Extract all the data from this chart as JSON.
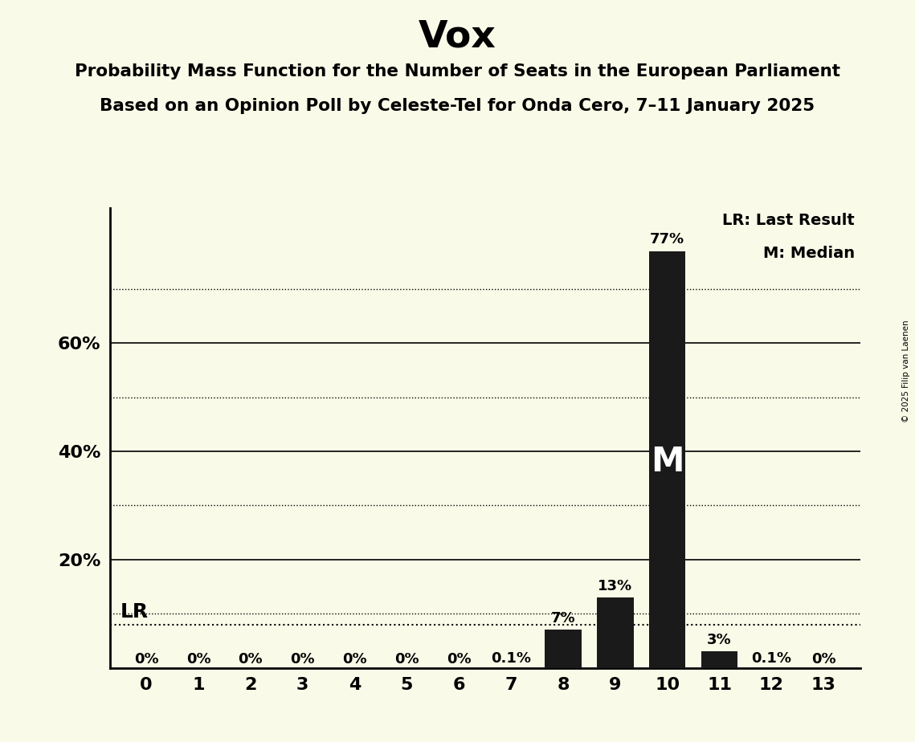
{
  "title": "Vox",
  "subtitle_line1": "Probability Mass Function for the Number of Seats in the European Parliament",
  "subtitle_line2": "Based on an Opinion Poll by Celeste-Tel for Onda Cero, 7–11 January 2025",
  "copyright": "© 2025 Filip van Laenen",
  "categories": [
    0,
    1,
    2,
    3,
    4,
    5,
    6,
    7,
    8,
    9,
    10,
    11,
    12,
    13
  ],
  "values": [
    0.0,
    0.0,
    0.0,
    0.0,
    0.0,
    0.0,
    0.0,
    0.1,
    7.0,
    13.0,
    77.0,
    3.0,
    0.1,
    0.0
  ],
  "bar_labels": [
    "0%",
    "0%",
    "0%",
    "0%",
    "0%",
    "0%",
    "0%",
    "0.1%",
    "7%",
    "13%",
    "77%",
    "3%",
    "0.1%",
    "0%"
  ],
  "bar_color": "#1a1a1a",
  "background_color": "#fafae8",
  "dotted_gridlines": [
    10,
    30,
    50,
    70
  ],
  "solid_gridlines": [
    20,
    40,
    60
  ],
  "lr_value": 8.0,
  "median_seat": 10,
  "legend_lr": "LR: Last Result",
  "legend_m": "M: Median",
  "title_fontsize": 34,
  "subtitle_fontsize": 15.5,
  "label_fontsize": 13,
  "tick_fontsize": 16,
  "lr_label_fontsize": 18,
  "legend_fontsize": 14,
  "ylim": [
    0,
    85
  ]
}
